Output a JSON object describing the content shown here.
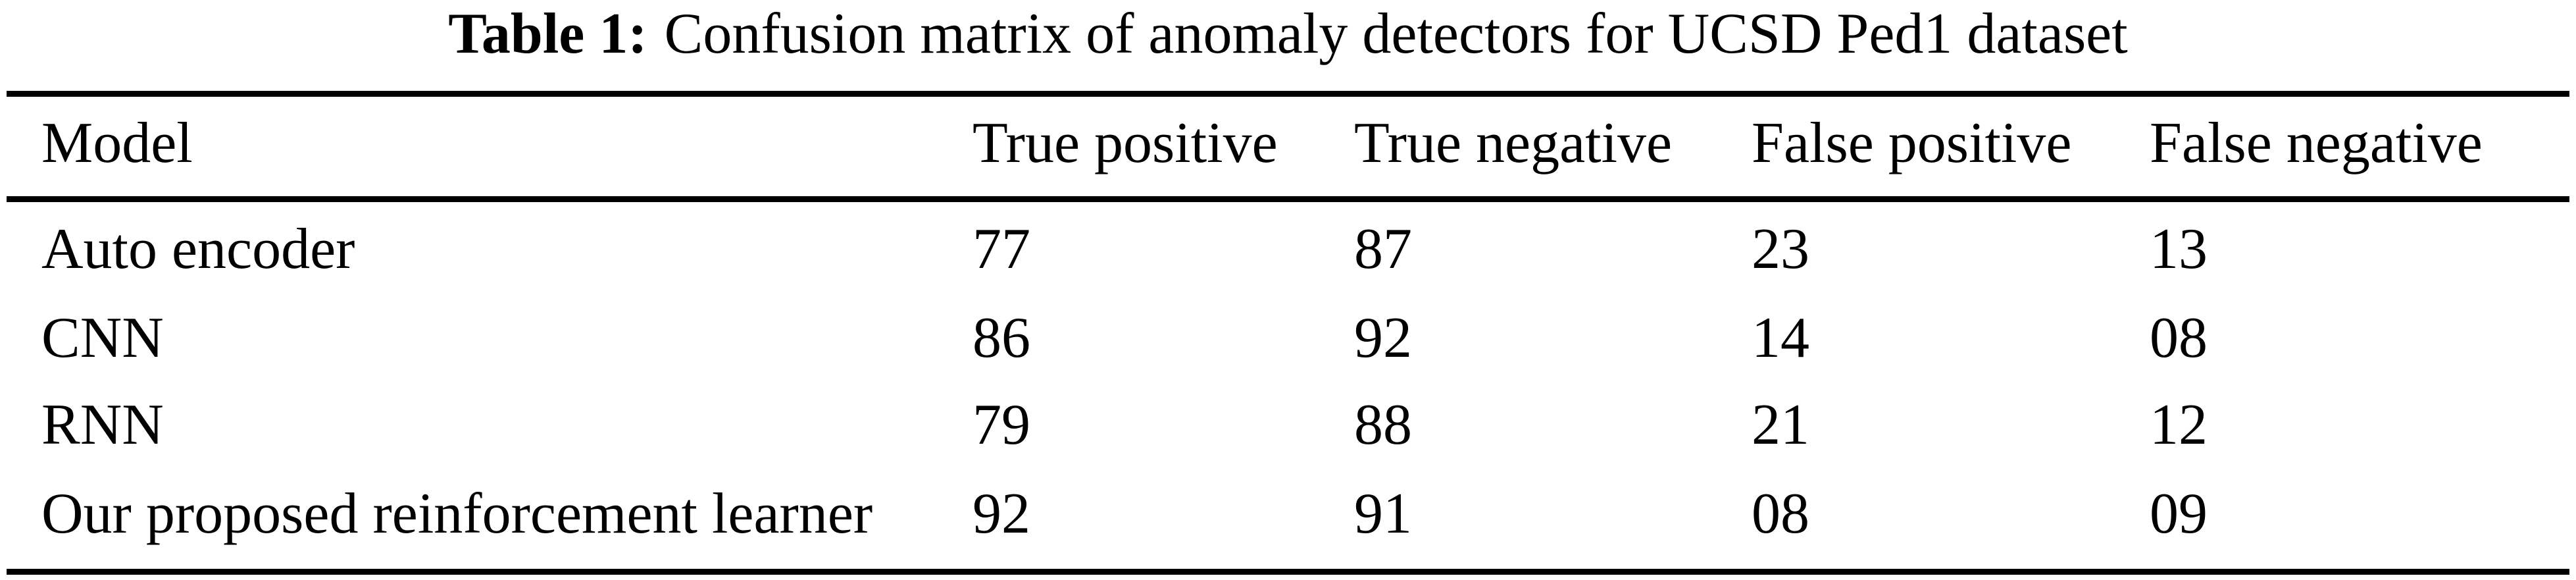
{
  "caption": {
    "label": "Table 1:",
    "text": "Confusion matrix of anomaly detectors for UCSD Ped1 dataset"
  },
  "table": {
    "columns": [
      "Model",
      "True positive",
      "True negative",
      "False positive",
      "False negative"
    ],
    "rows": [
      {
        "model": "Auto encoder",
        "tp": "77",
        "tn": "87",
        "fp": "23",
        "fn": "13"
      },
      {
        "model": "CNN",
        "tp": "86",
        "tn": "92",
        "fp": "14",
        "fn": "08"
      },
      {
        "model": "RNN",
        "tp": "79",
        "tn": "88",
        "fp": "21",
        "fn": "12"
      },
      {
        "model": "Our proposed reinforcement learner",
        "tp": "92",
        "tn": "91",
        "fp": "08",
        "fn": "09"
      }
    ]
  },
  "colors": {
    "text": "#000000",
    "background": "#ffffff",
    "rule": "#000000"
  }
}
